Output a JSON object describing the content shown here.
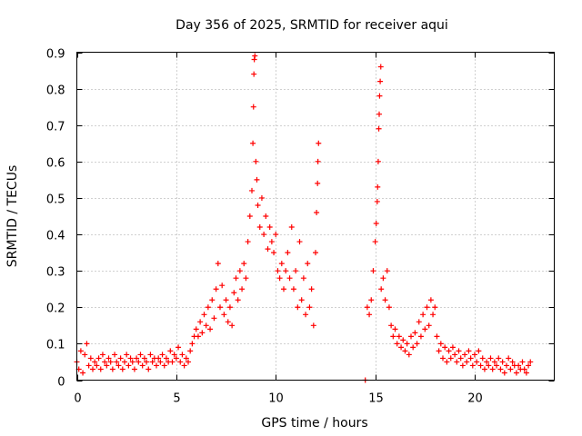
{
  "chart_data": {
    "type": "scatter",
    "title": "Day 356 of 2025, SRMTID for receiver aqui",
    "xlabel": "GPS time / hours",
    "ylabel": "SRMTID / TECUs",
    "xlim": [
      0,
      24
    ],
    "ylim": [
      0,
      0.9
    ],
    "xticks": [
      0,
      5,
      10,
      15,
      20
    ],
    "xtick_labels": [
      "0",
      "5",
      "10",
      "15",
      "20"
    ],
    "yticks": [
      0,
      0.1,
      0.2,
      0.3,
      0.4,
      0.5,
      0.6,
      0.7,
      0.8,
      0.9
    ],
    "ytick_labels": [
      "0",
      "0.1",
      "0.2",
      "0.3",
      "0.4",
      "0.5",
      "0.6",
      "0.7",
      "0.8",
      "0.9"
    ],
    "grid": true,
    "marker": "+",
    "series_color": "#ff0000",
    "series": [
      {
        "name": "SRMTID",
        "points": [
          [
            0.0,
            0.05
          ],
          [
            0.1,
            0.03
          ],
          [
            0.2,
            0.08
          ],
          [
            0.3,
            0.02
          ],
          [
            0.4,
            0.07
          ],
          [
            0.5,
            0.1
          ],
          [
            0.6,
            0.04
          ],
          [
            0.7,
            0.06
          ],
          [
            0.8,
            0.03
          ],
          [
            0.9,
            0.05
          ],
          [
            1.0,
            0.04
          ],
          [
            1.1,
            0.06
          ],
          [
            1.2,
            0.03
          ],
          [
            1.3,
            0.07
          ],
          [
            1.4,
            0.05
          ],
          [
            1.5,
            0.04
          ],
          [
            1.6,
            0.06
          ],
          [
            1.7,
            0.05
          ],
          [
            1.8,
            0.03
          ],
          [
            1.9,
            0.07
          ],
          [
            2.0,
            0.05
          ],
          [
            2.1,
            0.04
          ],
          [
            2.2,
            0.06
          ],
          [
            2.3,
            0.03
          ],
          [
            2.4,
            0.05
          ],
          [
            2.5,
            0.07
          ],
          [
            2.6,
            0.04
          ],
          [
            2.7,
            0.06
          ],
          [
            2.8,
            0.05
          ],
          [
            2.9,
            0.03
          ],
          [
            3.0,
            0.06
          ],
          [
            3.1,
            0.05
          ],
          [
            3.2,
            0.07
          ],
          [
            3.3,
            0.04
          ],
          [
            3.4,
            0.06
          ],
          [
            3.5,
            0.05
          ],
          [
            3.6,
            0.03
          ],
          [
            3.7,
            0.07
          ],
          [
            3.8,
            0.05
          ],
          [
            3.9,
            0.06
          ],
          [
            4.0,
            0.04
          ],
          [
            4.1,
            0.06
          ],
          [
            4.2,
            0.05
          ],
          [
            4.3,
            0.07
          ],
          [
            4.4,
            0.04
          ],
          [
            4.5,
            0.06
          ],
          [
            4.6,
            0.05
          ],
          [
            4.7,
            0.08
          ],
          [
            4.8,
            0.05
          ],
          [
            4.9,
            0.07
          ],
          [
            5.0,
            0.06
          ],
          [
            5.1,
            0.09
          ],
          [
            5.2,
            0.05
          ],
          [
            5.3,
            0.07
          ],
          [
            5.4,
            0.04
          ],
          [
            5.5,
            0.06
          ],
          [
            5.6,
            0.05
          ],
          [
            5.7,
            0.08
          ],
          [
            5.8,
            0.1
          ],
          [
            5.9,
            0.12
          ],
          [
            6.0,
            0.14
          ],
          [
            6.1,
            0.12
          ],
          [
            6.2,
            0.16
          ],
          [
            6.3,
            0.13
          ],
          [
            6.4,
            0.18
          ],
          [
            6.5,
            0.15
          ],
          [
            6.6,
            0.2
          ],
          [
            6.7,
            0.14
          ],
          [
            6.8,
            0.22
          ],
          [
            6.9,
            0.17
          ],
          [
            7.0,
            0.25
          ],
          [
            7.1,
            0.32
          ],
          [
            7.2,
            0.2
          ],
          [
            7.3,
            0.26
          ],
          [
            7.4,
            0.18
          ],
          [
            7.5,
            0.22
          ],
          [
            7.6,
            0.16
          ],
          [
            7.7,
            0.2
          ],
          [
            7.8,
            0.15
          ],
          [
            7.9,
            0.24
          ],
          [
            8.0,
            0.28
          ],
          [
            8.1,
            0.22
          ],
          [
            8.2,
            0.3
          ],
          [
            8.3,
            0.25
          ],
          [
            8.4,
            0.32
          ],
          [
            8.5,
            0.28
          ],
          [
            8.6,
            0.38
          ],
          [
            8.7,
            0.45
          ],
          [
            8.8,
            0.52
          ],
          [
            8.85,
            0.65
          ],
          [
            8.88,
            0.75
          ],
          [
            8.9,
            0.84
          ],
          [
            8.92,
            0.88
          ],
          [
            8.95,
            0.89
          ],
          [
            9.0,
            0.6
          ],
          [
            9.05,
            0.55
          ],
          [
            9.1,
            0.48
          ],
          [
            9.2,
            0.42
          ],
          [
            9.3,
            0.5
          ],
          [
            9.4,
            0.4
          ],
          [
            9.5,
            0.45
          ],
          [
            9.6,
            0.36
          ],
          [
            9.7,
            0.42
          ],
          [
            9.8,
            0.38
          ],
          [
            9.9,
            0.35
          ],
          [
            10.0,
            0.4
          ],
          [
            10.1,
            0.3
          ],
          [
            10.2,
            0.28
          ],
          [
            10.3,
            0.32
          ],
          [
            10.4,
            0.25
          ],
          [
            10.5,
            0.3
          ],
          [
            10.6,
            0.35
          ],
          [
            10.7,
            0.28
          ],
          [
            10.8,
            0.42
          ],
          [
            10.9,
            0.25
          ],
          [
            11.0,
            0.3
          ],
          [
            11.1,
            0.2
          ],
          [
            11.2,
            0.38
          ],
          [
            11.3,
            0.22
          ],
          [
            11.4,
            0.28
          ],
          [
            11.5,
            0.18
          ],
          [
            11.6,
            0.32
          ],
          [
            11.7,
            0.2
          ],
          [
            11.8,
            0.25
          ],
          [
            11.9,
            0.15
          ],
          [
            12.0,
            0.35
          ],
          [
            12.05,
            0.46
          ],
          [
            12.1,
            0.54
          ],
          [
            12.12,
            0.6
          ],
          [
            12.15,
            0.65
          ],
          [
            14.5,
            0.0
          ],
          [
            14.6,
            0.2
          ],
          [
            14.7,
            0.18
          ],
          [
            14.8,
            0.22
          ],
          [
            14.9,
            0.3
          ],
          [
            15.0,
            0.38
          ],
          [
            15.05,
            0.43
          ],
          [
            15.1,
            0.49
          ],
          [
            15.12,
            0.53
          ],
          [
            15.15,
            0.6
          ],
          [
            15.18,
            0.69
          ],
          [
            15.2,
            0.73
          ],
          [
            15.22,
            0.78
          ],
          [
            15.25,
            0.82
          ],
          [
            15.28,
            0.86
          ],
          [
            15.3,
            0.25
          ],
          [
            15.4,
            0.28
          ],
          [
            15.5,
            0.22
          ],
          [
            15.6,
            0.3
          ],
          [
            15.7,
            0.2
          ],
          [
            15.8,
            0.15
          ],
          [
            15.9,
            0.12
          ],
          [
            16.0,
            0.14
          ],
          [
            16.1,
            0.1
          ],
          [
            16.2,
            0.12
          ],
          [
            16.3,
            0.09
          ],
          [
            16.4,
            0.11
          ],
          [
            16.5,
            0.08
          ],
          [
            16.6,
            0.1
          ],
          [
            16.7,
            0.07
          ],
          [
            16.8,
            0.12
          ],
          [
            16.9,
            0.09
          ],
          [
            17.0,
            0.13
          ],
          [
            17.1,
            0.1
          ],
          [
            17.2,
            0.16
          ],
          [
            17.3,
            0.12
          ],
          [
            17.4,
            0.18
          ],
          [
            17.5,
            0.14
          ],
          [
            17.6,
            0.2
          ],
          [
            17.7,
            0.15
          ],
          [
            17.8,
            0.22
          ],
          [
            17.9,
            0.18
          ],
          [
            18.0,
            0.2
          ],
          [
            18.1,
            0.12
          ],
          [
            18.2,
            0.08
          ],
          [
            18.3,
            0.1
          ],
          [
            18.4,
            0.06
          ],
          [
            18.5,
            0.09
          ],
          [
            18.6,
            0.05
          ],
          [
            18.7,
            0.08
          ],
          [
            18.8,
            0.06
          ],
          [
            18.9,
            0.09
          ],
          [
            19.0,
            0.07
          ],
          [
            19.1,
            0.05
          ],
          [
            19.2,
            0.08
          ],
          [
            19.3,
            0.06
          ],
          [
            19.4,
            0.04
          ],
          [
            19.5,
            0.07
          ],
          [
            19.6,
            0.05
          ],
          [
            19.7,
            0.08
          ],
          [
            19.8,
            0.06
          ],
          [
            19.9,
            0.04
          ],
          [
            20.0,
            0.07
          ],
          [
            20.1,
            0.05
          ],
          [
            20.2,
            0.08
          ],
          [
            20.3,
            0.04
          ],
          [
            20.4,
            0.06
          ],
          [
            20.5,
            0.03
          ],
          [
            20.6,
            0.05
          ],
          [
            20.7,
            0.04
          ],
          [
            20.8,
            0.06
          ],
          [
            20.9,
            0.03
          ],
          [
            21.0,
            0.05
          ],
          [
            21.1,
            0.04
          ],
          [
            21.2,
            0.06
          ],
          [
            21.3,
            0.03
          ],
          [
            21.4,
            0.05
          ],
          [
            21.5,
            0.02
          ],
          [
            21.6,
            0.04
          ],
          [
            21.7,
            0.06
          ],
          [
            21.8,
            0.03
          ],
          [
            21.9,
            0.05
          ],
          [
            22.0,
            0.04
          ],
          [
            22.1,
            0.02
          ],
          [
            22.2,
            0.04
          ],
          [
            22.3,
            0.03
          ],
          [
            22.4,
            0.05
          ],
          [
            22.5,
            0.03
          ],
          [
            22.6,
            0.02
          ],
          [
            22.7,
            0.04
          ],
          [
            22.8,
            0.05
          ]
        ]
      }
    ]
  }
}
